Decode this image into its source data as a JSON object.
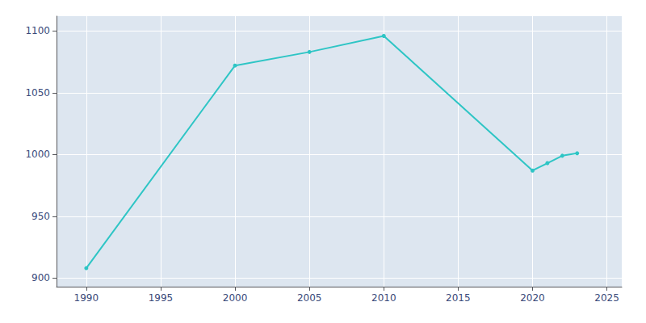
{
  "chart_data": {
    "type": "line",
    "x": [
      1990,
      2000,
      2005,
      2010,
      2020,
      2021,
      2022,
      2023
    ],
    "values": [
      908,
      1072,
      1083,
      1096,
      987,
      993,
      999,
      1001
    ],
    "color": "#2ec5c5",
    "marker": "circle",
    "xlim": [
      1988,
      2026
    ],
    "ylim": [
      893,
      1112
    ],
    "xticks": [
      1990,
      1995,
      2000,
      2005,
      2010,
      2015,
      2020,
      2025
    ],
    "yticks": [
      900,
      950,
      1000,
      1050,
      1100
    ],
    "grid": true
  }
}
